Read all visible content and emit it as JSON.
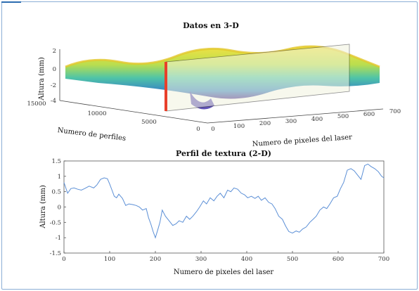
{
  "chart_data": [
    {
      "type": "surface",
      "title": "Datos en 3-D",
      "xlabel": "Numero de pixeles del laser",
      "ylabel": "Numero de perfiles",
      "zlabel": "Altura (mm)",
      "xticks": [
        "0",
        "100",
        "200",
        "300",
        "400",
        "500",
        "600",
        "700"
      ],
      "yticks": [
        "0",
        "5000",
        "10000",
        "15000"
      ],
      "zticks": [
        "2",
        "0",
        "-2",
        "-4"
      ],
      "xlim": [
        0,
        700
      ],
      "ylim": [
        0,
        15000
      ],
      "zlim": [
        -4,
        3
      ],
      "section_line_color": "#e8402a",
      "colormap": [
        "#3b1f8c",
        "#2e7fbf",
        "#3fbfa8",
        "#a8d84a",
        "#f0e03a"
      ]
    },
    {
      "type": "line",
      "title": "Perfil de textura (2-D)",
      "xlabel": "Numero de pixeles del laser",
      "ylabel": "Altura (mm)",
      "xticks": [
        "0",
        "100",
        "200",
        "300",
        "400",
        "500",
        "600",
        "700"
      ],
      "yticks": [
        "1.5",
        "1",
        "0.5",
        "0",
        "-0.5",
        "-1",
        "-1.5"
      ],
      "xlim": [
        0,
        700
      ],
      "ylim": [
        -1.5,
        1.5
      ],
      "grid": false,
      "line_color": "#5b8fd6",
      "series": [
        {
          "x": [
            0,
            8,
            15,
            22,
            30,
            38,
            45,
            55,
            65,
            72,
            80,
            88,
            95,
            100,
            105,
            110,
            115,
            120,
            128,
            135,
            142,
            150,
            158,
            165,
            172,
            180,
            185,
            190,
            195,
            200,
            205,
            210,
            215,
            222,
            230,
            238,
            245,
            252,
            260,
            268,
            275,
            282,
            290,
            297,
            305,
            312,
            320,
            328,
            335,
            342,
            350,
            358,
            365,
            372,
            380,
            388,
            395,
            402,
            410,
            418,
            425,
            432,
            440,
            448,
            455,
            462,
            470,
            478,
            485,
            492,
            500,
            508,
            515,
            522,
            530,
            538,
            545,
            552,
            560,
            568,
            575,
            582,
            590,
            598,
            605,
            612,
            620,
            628,
            635,
            642,
            650,
            658,
            665,
            672,
            680,
            688,
            695,
            700
          ],
          "y": [
            0.8,
            0.45,
            0.6,
            0.62,
            0.58,
            0.55,
            0.6,
            0.68,
            0.62,
            0.72,
            0.9,
            0.95,
            0.92,
            0.75,
            0.55,
            0.35,
            0.3,
            0.42,
            0.28,
            0.05,
            0.1,
            0.08,
            0.05,
            0.0,
            -0.1,
            -0.05,
            -0.35,
            -0.55,
            -0.8,
            -1.0,
            -0.75,
            -0.5,
            -0.1,
            -0.3,
            -0.45,
            -0.6,
            -0.55,
            -0.45,
            -0.5,
            -0.3,
            -0.4,
            -0.3,
            -0.15,
            0.0,
            0.2,
            0.1,
            0.3,
            0.2,
            0.35,
            0.45,
            0.3,
            0.55,
            0.5,
            0.62,
            0.58,
            0.45,
            0.4,
            0.3,
            0.35,
            0.28,
            0.35,
            0.22,
            0.3,
            0.15,
            0.1,
            -0.05,
            -0.3,
            -0.4,
            -0.62,
            -0.8,
            -0.85,
            -0.78,
            -0.82,
            -0.72,
            -0.65,
            -0.5,
            -0.4,
            -0.3,
            -0.1,
            0.0,
            -0.05,
            0.1,
            0.3,
            0.35,
            0.6,
            0.8,
            1.2,
            1.25,
            1.18,
            1.05,
            0.9,
            1.35,
            1.4,
            1.32,
            1.25,
            1.15,
            1.0,
            0.95
          ]
        }
      ]
    }
  ]
}
